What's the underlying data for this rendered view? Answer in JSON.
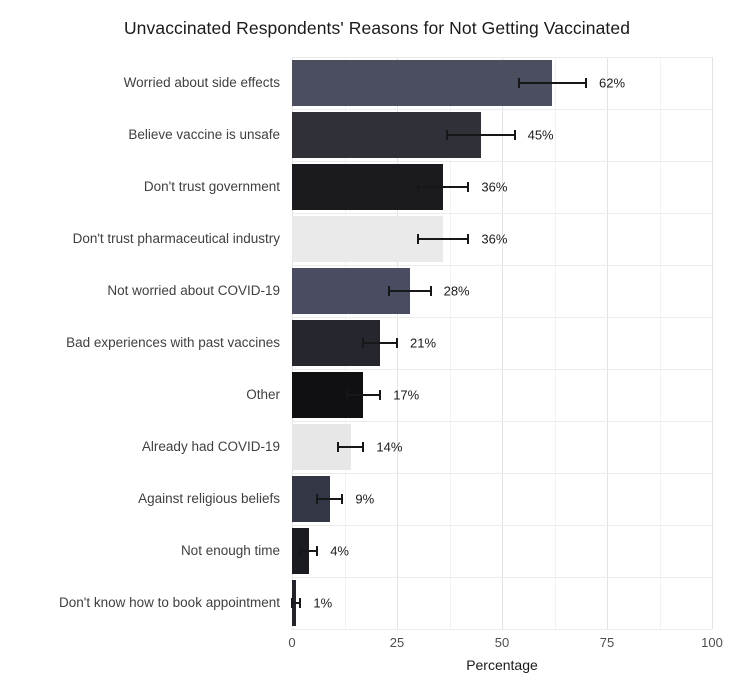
{
  "chart_data": {
    "type": "bar",
    "orientation": "horizontal",
    "title": "Unvaccinated Respondents' Reasons for Not Getting Vaccinated",
    "xlabel": "Percentage",
    "xlim": [
      0,
      100
    ],
    "x_major_ticks": [
      0,
      25,
      50,
      75,
      100
    ],
    "x_minor_ticks": [
      12.5,
      37.5,
      62.5,
      87.5
    ],
    "grid": true,
    "legend": false,
    "categories": [
      "Worried about side effects",
      "Believe vaccine is unsafe",
      "Don't trust government",
      "Don't trust pharmaceutical industry",
      "Not worried about COVID-19",
      "Bad experiences with past vaccines",
      "Other",
      "Already had COVID-19",
      "Against religious beliefs",
      "Not enough time",
      "Don't know how to book appointment"
    ],
    "values": [
      62,
      45,
      36,
      36,
      28,
      21,
      17,
      14,
      9,
      4,
      1
    ],
    "errors_plus_minus": [
      8,
      8,
      6,
      6,
      5,
      4,
      4,
      3,
      3,
      2,
      1
    ],
    "value_labels": [
      "62%",
      "45%",
      "36%",
      "36%",
      "28%",
      "21%",
      "17%",
      "14%",
      "9%",
      "4%",
      "1%"
    ],
    "bar_colors": [
      "#4b4e5e",
      "#303138",
      "#1b1b1f",
      "#eaeaea",
      "#4a4d61",
      "#26272e",
      "#101013",
      "#e7e7e7",
      "#333645",
      "#1b1c22",
      "#23232b"
    ],
    "error_bar_color": "#17171a",
    "major_grid_color": "#e3e3e3",
    "minor_grid_color": "#f2f2f2",
    "x_tick_labels": [
      "0",
      "25",
      "50",
      "75",
      "100"
    ]
  }
}
